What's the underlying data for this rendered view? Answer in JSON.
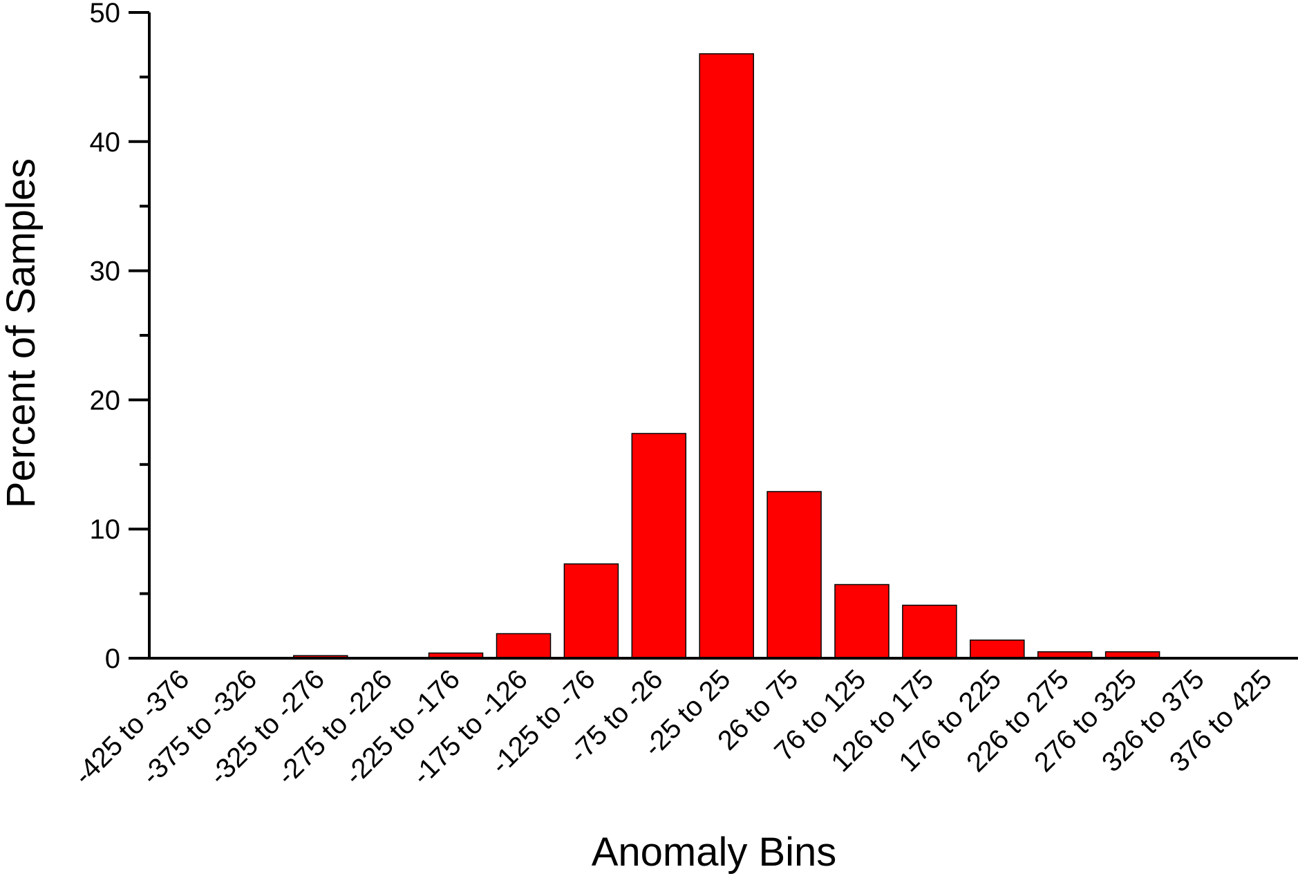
{
  "chart_data": {
    "type": "bar",
    "title": "",
    "xlabel": "Anomaly Bins",
    "ylabel": "Percent of Samples",
    "categories": [
      "-425 to -376",
      "-375 to -326",
      "-325 to -276",
      "-275 to -226",
      "-225 to -176",
      "-175 to -126",
      "-125 to -76",
      "-75 to -26",
      "-25 to 25",
      "26 to 75",
      "76 to 125",
      "126 to 175",
      "176 to 225",
      "226 to 275",
      "276 to 325",
      "326 to 375",
      "376 to 425"
    ],
    "values": [
      0,
      0,
      0.2,
      0,
      0.4,
      1.9,
      7.3,
      17.4,
      46.8,
      12.9,
      5.7,
      4.1,
      1.4,
      0.5,
      0.5,
      0,
      0
    ],
    "ylim": [
      0,
      50
    ],
    "yticks": [
      0,
      10,
      20,
      30,
      40,
      50
    ],
    "grid": false,
    "legend": "none",
    "bar_color": "#ff0000",
    "bar_edge_color": "#000000"
  }
}
